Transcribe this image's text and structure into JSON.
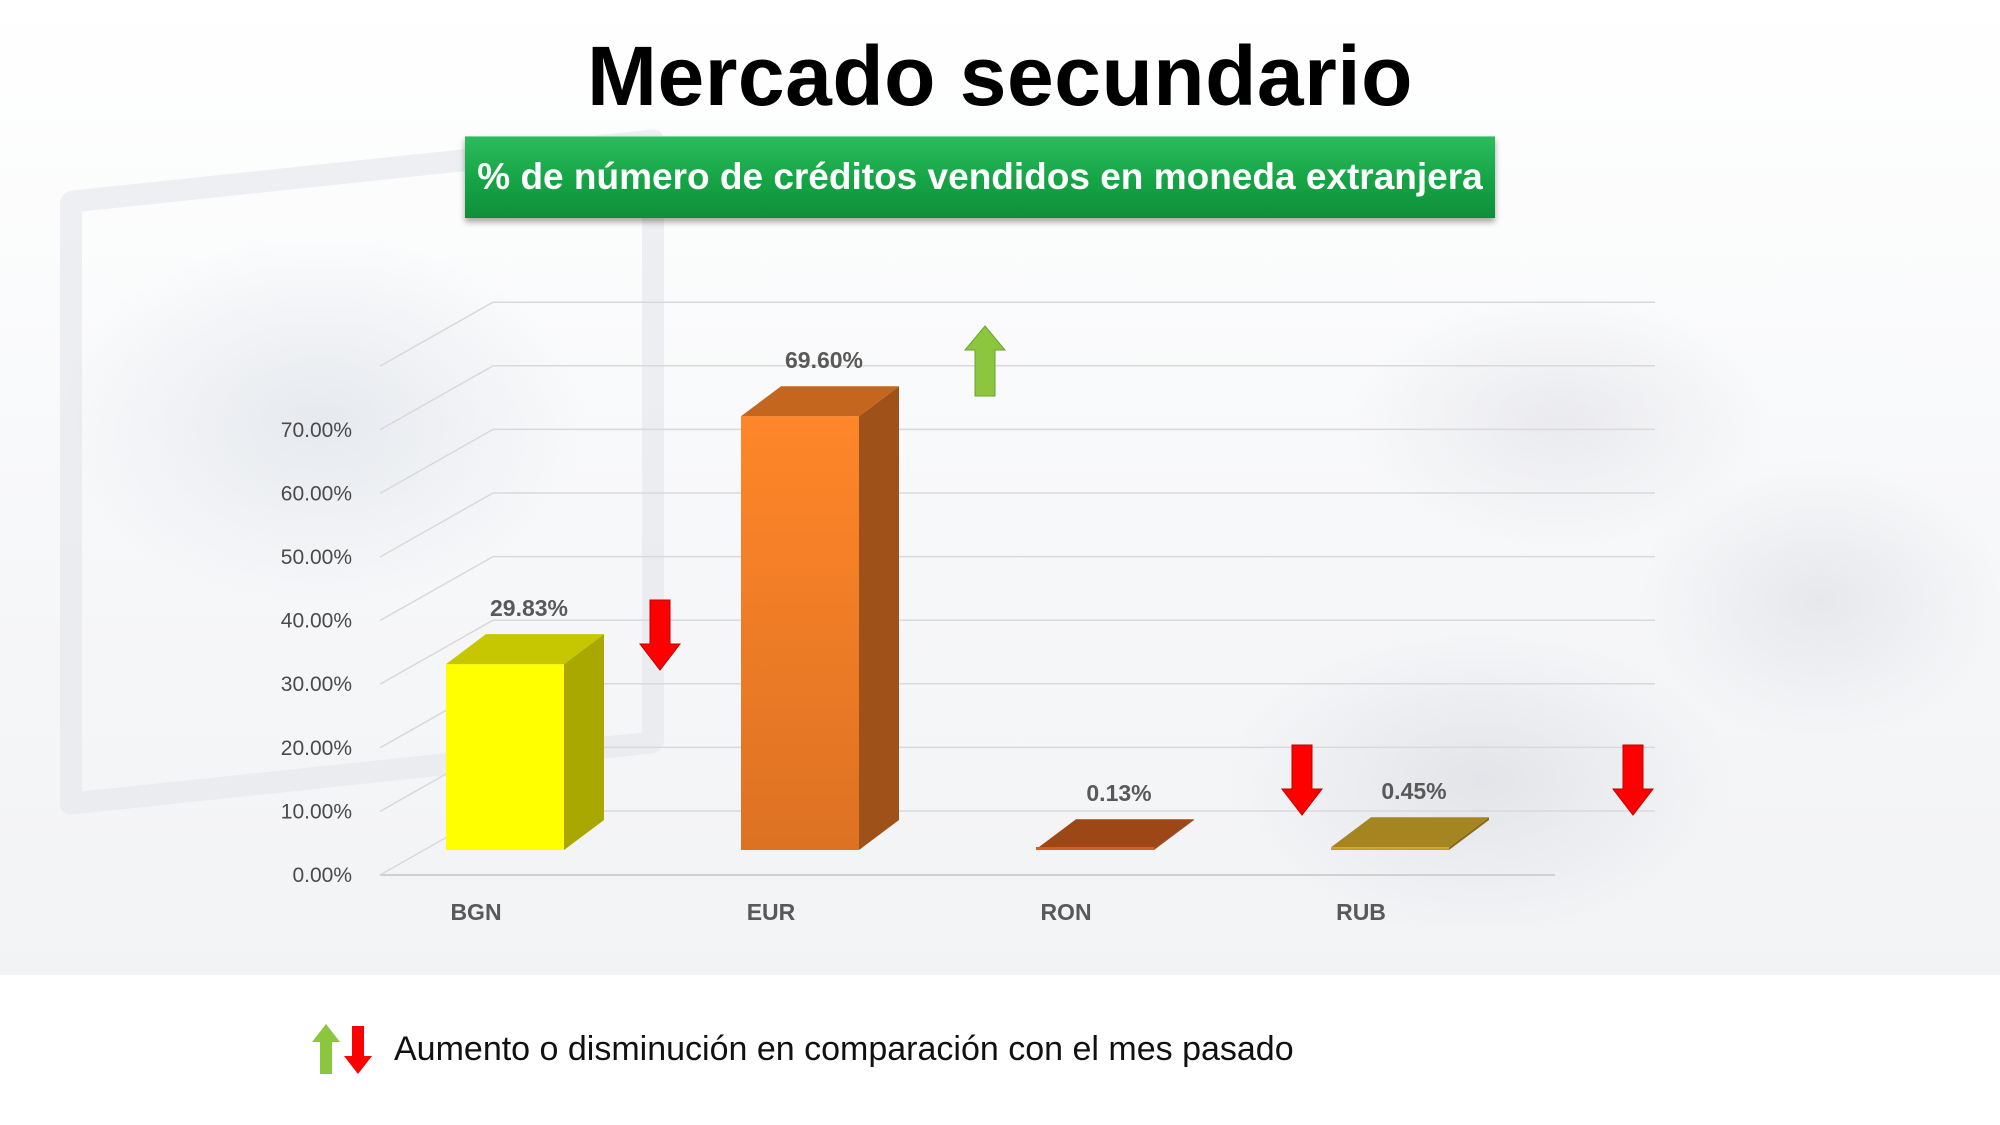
{
  "title": "Mercado secundario",
  "subtitle": "% de número de créditos vendidos en moneda extranjera",
  "legend": {
    "text": "Aumento o disminución en comparación con el mes pasado",
    "up_color": "#8cc63f",
    "down_color": "#ff0000"
  },
  "chart_data": {
    "type": "bar",
    "subtype": "3d-column",
    "categories": [
      "BGN",
      "EUR",
      "RON",
      "RUB"
    ],
    "values": [
      29.83,
      69.6,
      0.13,
      0.45
    ],
    "data_labels": [
      "29.83%",
      "69.60%",
      "0.13%",
      "0.45%"
    ],
    "colors": [
      "#ffff00",
      "#f07c26",
      "#c0561c",
      "#c9a227"
    ],
    "trend": [
      "down",
      "up",
      "down",
      "down"
    ],
    "y_ticks": [
      "0.00%",
      "10.00%",
      "20.00%",
      "30.00%",
      "40.00%",
      "50.00%",
      "60.00%",
      "70.00%"
    ],
    "ylim": [
      0,
      80
    ],
    "grid": true,
    "xlabel": "",
    "ylabel": ""
  }
}
